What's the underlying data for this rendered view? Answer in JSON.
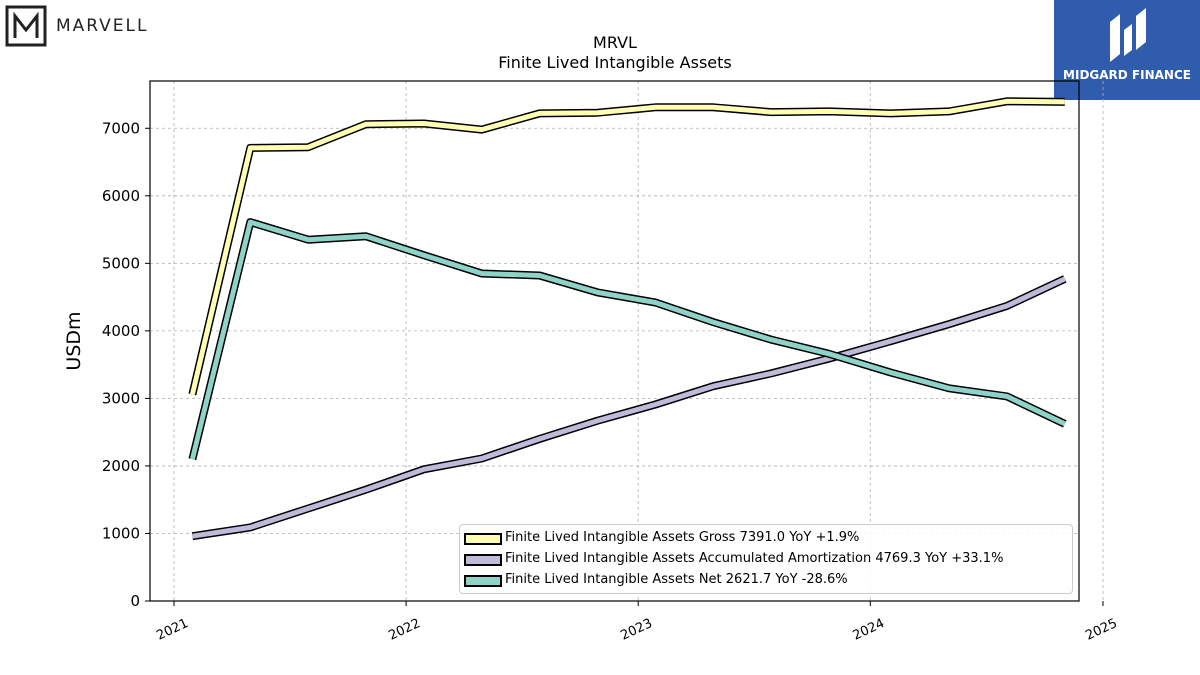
{
  "branding": {
    "left_logo_text": "MARVELL",
    "right_logo_text": "MIDGARD FINANCE",
    "right_logo_color": "#2f5cad"
  },
  "chart_data": {
    "type": "line",
    "title": "MRVL",
    "subtitle": "Finite Lived Intangible Assets",
    "ylabel": "USDm",
    "xlabel": "",
    "xlim": [
      "2021-01-01",
      "2025-01-01"
    ],
    "ylim": [
      0,
      7700
    ],
    "x_ticks": [
      "2021",
      "2022",
      "2023",
      "2024",
      "2025"
    ],
    "y_ticks": [
      "0",
      "1000",
      "2000",
      "3000",
      "4000",
      "5000",
      "6000",
      "7000"
    ],
    "grid": true,
    "legend_position": "bottom-right",
    "x": [
      "2021-01-30",
      "2021-05-01",
      "2021-07-31",
      "2021-10-30",
      "2022-01-29",
      "2022-04-30",
      "2022-07-30",
      "2022-10-29",
      "2023-01-28",
      "2023-04-29",
      "2023-07-29",
      "2023-10-28",
      "2024-02-03",
      "2024-05-04",
      "2024-08-03",
      "2024-11-02"
    ],
    "series": [
      {
        "name": "Finite Lived Intangible Assets Gross",
        "legend_label": "Finite Lived Intangible Assets Gross  7391.0 YoY +1.9%",
        "color": "#ffffb3",
        "values": [
          3060,
          6710,
          6720,
          7060,
          7070,
          6980,
          7220,
          7230,
          7310,
          7310,
          7240,
          7250,
          7220,
          7250,
          7400,
          7391
        ]
      },
      {
        "name": "Finite Lived Intangible Assets Accumulated Amortization",
        "legend_label": "Finite Lived Intangible Assets Accumulated Amortization  4769.3 YoY +33.1%",
        "color": "#bebada",
        "values": [
          960,
          1090,
          1370,
          1650,
          1950,
          2110,
          2400,
          2670,
          2910,
          3180,
          3370,
          3590,
          3850,
          4100,
          4370,
          4769
        ]
      },
      {
        "name": "Finite Lived Intangible Assets Net",
        "legend_label": "Finite Lived Intangible Assets Net  2621.7 YoY -28.6%",
        "color": "#8dd3c7",
        "values": [
          2100,
          5610,
          5350,
          5400,
          5120,
          4850,
          4820,
          4570,
          4420,
          4130,
          3870,
          3660,
          3380,
          3150,
          3030,
          2622
        ]
      }
    ]
  }
}
